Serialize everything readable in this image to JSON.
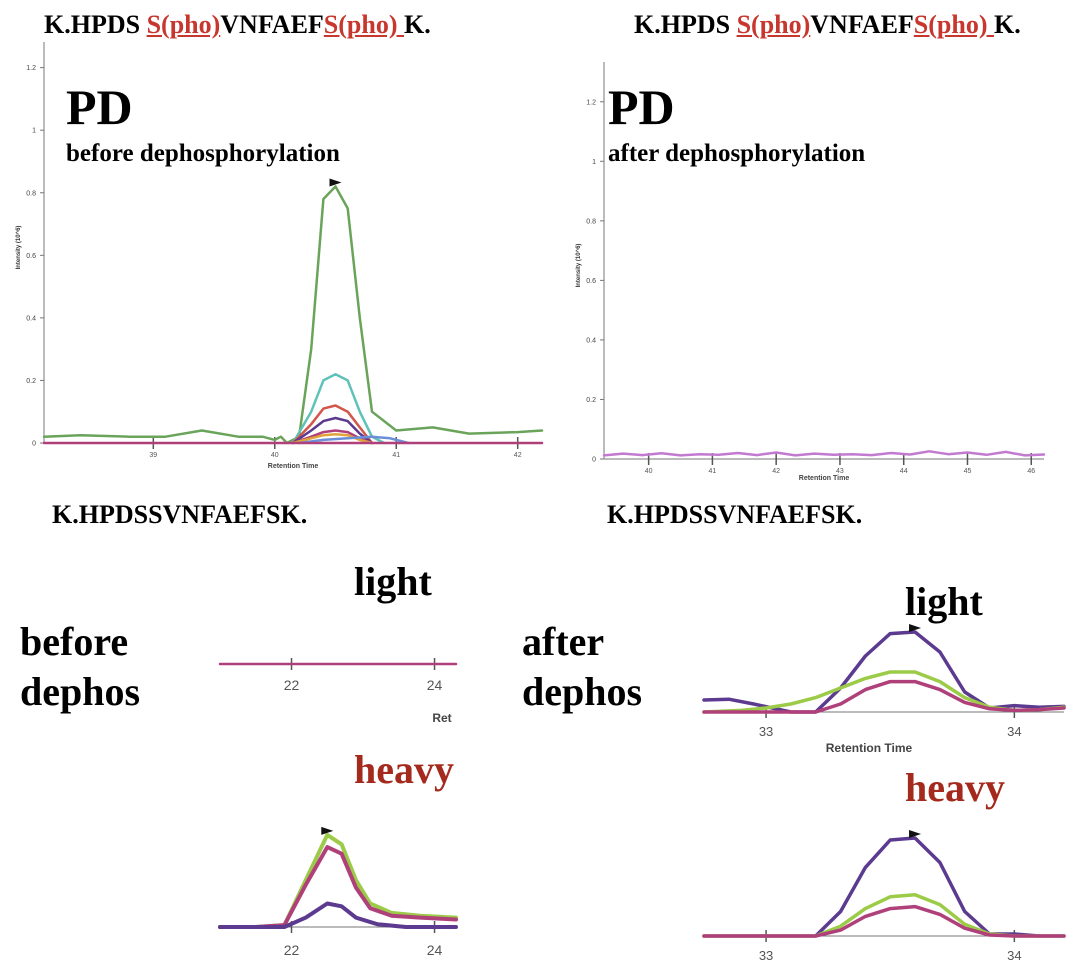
{
  "peptides": {
    "phospho_left": {
      "prefix": "K.HPDS ",
      "mod1": "S(pho)",
      "middle": "VNFAEF",
      "mod2": "S(pho) ",
      "suffix": "K."
    },
    "phospho_right": {
      "prefix": "K.HPDS ",
      "mod1": "S(pho)",
      "middle": "VNFAEF",
      "mod2": "S(pho) ",
      "suffix": "K."
    },
    "unmod_left": "K.HPDSSVNFAEFSK.",
    "unmod_right": "K.HPDSSVNFAEFSK."
  },
  "labels": {
    "pd_left": "PD",
    "pd_left_sub": "before dephosphorylation",
    "pd_right": "PD",
    "pd_right_sub": "after dephosphorylation",
    "before_line1": "before",
    "before_line2": "dephos",
    "after_line1": "after",
    "after_line2": "dephos",
    "light_left": "light",
    "heavy_left": "heavy",
    "light_right": "light",
    "heavy_right": "heavy"
  },
  "colors": {
    "green": "#6aa45a",
    "teal": "#5fc2b8",
    "red": "#d2564a",
    "purple": "#5b3a8f",
    "magenta": "#b0407a",
    "orange": "#e0a43a",
    "blue": "#6a8ed8",
    "lightgreen": "#9ccb48",
    "lavender": "#c27ad0",
    "heavy_text": "#a52a1e",
    "peptide_red": "#c8372d"
  },
  "chart_data": [
    {
      "id": "phospho-before",
      "type": "line",
      "xlabel": "Retention Time",
      "ylabel": "Intensity (10^6)",
      "xlim": [
        38.1,
        42.2
      ],
      "ylim": [
        0,
        1.25
      ],
      "xticks": [
        39,
        40,
        41,
        42
      ],
      "yticks": [
        0,
        0.2,
        0.4,
        0.6,
        0.8,
        1,
        1.2
      ],
      "series": [
        {
          "color": "#6aa45a",
          "x": [
            38.1,
            38.4,
            38.8,
            39.1,
            39.4,
            39.7,
            39.9,
            40.0,
            40.05,
            40.1,
            40.2,
            40.3,
            40.4,
            40.5,
            40.6,
            40.7,
            40.8,
            41.0,
            41.3,
            41.6,
            42.0,
            42.2
          ],
          "y": [
            0.02,
            0.025,
            0.02,
            0.02,
            0.04,
            0.02,
            0.02,
            0.01,
            0.02,
            0.0,
            0.02,
            0.3,
            0.78,
            0.82,
            0.75,
            0.4,
            0.1,
            0.04,
            0.05,
            0.03,
            0.035,
            0.04
          ]
        },
        {
          "color": "#5fc2b8",
          "x": [
            40.15,
            40.3,
            40.4,
            40.5,
            40.6,
            40.7,
            40.8,
            40.9
          ],
          "y": [
            0.0,
            0.1,
            0.2,
            0.22,
            0.2,
            0.1,
            0.02,
            0.0
          ]
        },
        {
          "color": "#d2564a",
          "x": [
            40.15,
            40.3,
            40.4,
            40.5,
            40.6,
            40.7,
            40.8
          ],
          "y": [
            0.0,
            0.06,
            0.11,
            0.12,
            0.1,
            0.05,
            0.0
          ]
        },
        {
          "color": "#5b3a8f",
          "x": [
            40.15,
            40.3,
            40.4,
            40.5,
            40.6,
            40.7,
            40.8
          ],
          "y": [
            0.0,
            0.04,
            0.07,
            0.08,
            0.07,
            0.03,
            0.0
          ]
        },
        {
          "color": "#b0407a",
          "x": [
            40.15,
            40.3,
            40.4,
            40.5,
            40.6,
            40.7,
            40.8
          ],
          "y": [
            0.0,
            0.02,
            0.035,
            0.04,
            0.035,
            0.015,
            0.0
          ]
        },
        {
          "color": "#e0a43a",
          "x": [
            40.15,
            40.3,
            40.4,
            40.5,
            40.6,
            40.7,
            40.8
          ],
          "y": [
            0.0,
            0.015,
            0.025,
            0.028,
            0.025,
            0.01,
            0.0
          ]
        },
        {
          "color": "#6a8ed8",
          "x": [
            40.2,
            40.4,
            40.6,
            40.8,
            40.95,
            41.1
          ],
          "y": [
            0.0,
            0.01,
            0.015,
            0.02,
            0.015,
            0.0
          ]
        },
        {
          "color": "#b0407a",
          "x": [
            38.1,
            40.0,
            40.15,
            40.8,
            41.0,
            42.2
          ],
          "y": [
            0.0,
            0.0,
            0.0,
            0.0,
            0.0,
            0.0
          ]
        }
      ]
    },
    {
      "id": "phospho-after",
      "type": "line",
      "xlabel": "Retention Time",
      "ylabel": "Intensity (10^6)",
      "xlim": [
        39.3,
        46.2
      ],
      "ylim": [
        0,
        1.3
      ],
      "xticks": [
        40,
        41,
        42,
        43,
        44,
        45,
        46
      ],
      "yticks": [
        0,
        0.2,
        0.4,
        0.6,
        0.8,
        1,
        1.2
      ],
      "series": [
        {
          "color": "#c27ad0",
          "x": [
            39.3,
            39.6,
            39.9,
            40.2,
            40.5,
            40.8,
            41.1,
            41.4,
            41.7,
            42.0,
            42.3,
            42.6,
            42.9,
            43.2,
            43.5,
            43.8,
            44.1,
            44.4,
            44.7,
            45.0,
            45.3,
            45.6,
            45.9,
            46.2
          ],
          "y": [
            0.012,
            0.018,
            0.013,
            0.019,
            0.012,
            0.016,
            0.014,
            0.02,
            0.013,
            0.022,
            0.012,
            0.018,
            0.014,
            0.016,
            0.013,
            0.02,
            0.015,
            0.026,
            0.016,
            0.022,
            0.014,
            0.024,
            0.012,
            0.015
          ]
        }
      ]
    },
    {
      "id": "unmod-before-light",
      "type": "line",
      "xlabel": "Ret",
      "xlim": [
        21.0,
        24.3
      ],
      "xticks": [
        22,
        24
      ],
      "series": [
        {
          "color": "#b0407a",
          "x": [
            21.0,
            24.3
          ],
          "y": [
            0.0,
            0.0
          ]
        }
      ]
    },
    {
      "id": "unmod-before-heavy",
      "type": "line",
      "xlabel": "",
      "xlim": [
        21.0,
        24.3
      ],
      "xticks": [
        22,
        24
      ],
      "series": [
        {
          "color": "#9ccb48",
          "x": [
            21.0,
            21.5,
            21.9,
            22.2,
            22.5,
            22.7,
            22.9,
            23.1,
            23.4,
            23.8,
            24.3
          ],
          "y": [
            0.0,
            0.0,
            0.02,
            0.5,
            0.98,
            0.88,
            0.5,
            0.25,
            0.15,
            0.12,
            0.1
          ]
        },
        {
          "color": "#b0407a",
          "x": [
            21.0,
            21.5,
            21.9,
            22.2,
            22.5,
            22.7,
            22.9,
            23.1,
            23.4,
            23.8,
            24.3
          ],
          "y": [
            0.0,
            0.0,
            0.02,
            0.45,
            0.85,
            0.78,
            0.42,
            0.2,
            0.12,
            0.1,
            0.08
          ]
        },
        {
          "color": "#5b3a8f",
          "x": [
            21.0,
            21.6,
            21.9,
            22.2,
            22.5,
            22.7,
            22.9,
            23.2,
            23.6,
            24.3
          ],
          "y": [
            0.0,
            0.0,
            0.0,
            0.1,
            0.25,
            0.22,
            0.1,
            0.03,
            0.0,
            0.0
          ]
        }
      ]
    },
    {
      "id": "unmod-after-light",
      "type": "line",
      "xlabel": "Retention Time",
      "xlim": [
        32.75,
        34.2
      ],
      "xticks": [
        33,
        34
      ],
      "series": [
        {
          "color": "#5b3a8f",
          "x": [
            32.75,
            32.85,
            32.95,
            33.1,
            33.2,
            33.3,
            33.4,
            33.5,
            33.6,
            33.7,
            33.8,
            33.9,
            34.0,
            34.1,
            34.2
          ],
          "y": [
            0.15,
            0.16,
            0.1,
            0.0,
            0.0,
            0.3,
            0.7,
            0.98,
            1.0,
            0.75,
            0.25,
            0.05,
            0.08,
            0.06,
            0.07
          ]
        },
        {
          "color": "#9ccb48",
          "x": [
            32.75,
            32.9,
            33.0,
            33.1,
            33.2,
            33.3,
            33.4,
            33.5,
            33.6,
            33.7,
            33.8,
            33.9,
            34.0,
            34.1,
            34.2
          ],
          "y": [
            0.0,
            0.02,
            0.05,
            0.1,
            0.18,
            0.3,
            0.42,
            0.5,
            0.5,
            0.38,
            0.18,
            0.06,
            0.02,
            0.03,
            0.06
          ]
        },
        {
          "color": "#b0407a",
          "x": [
            32.75,
            33.1,
            33.2,
            33.3,
            33.4,
            33.5,
            33.6,
            33.7,
            33.8,
            33.9,
            34.0,
            34.1,
            34.2
          ],
          "y": [
            0.0,
            0.0,
            0.0,
            0.1,
            0.28,
            0.38,
            0.38,
            0.28,
            0.12,
            0.04,
            0.02,
            0.03,
            0.05
          ]
        }
      ]
    },
    {
      "id": "unmod-after-heavy",
      "type": "line",
      "xlabel": "",
      "xlim": [
        32.75,
        34.2
      ],
      "xticks": [
        33,
        34
      ],
      "series": [
        {
          "color": "#5b3a8f",
          "x": [
            32.75,
            33.0,
            33.2,
            33.3,
            33.4,
            33.5,
            33.6,
            33.7,
            33.8,
            33.9,
            34.0,
            34.1,
            34.2
          ],
          "y": [
            0.0,
            0.0,
            0.0,
            0.25,
            0.7,
            0.98,
            1.0,
            0.75,
            0.25,
            0.02,
            0.02,
            0.0,
            0.0
          ]
        },
        {
          "color": "#9ccb48",
          "x": [
            32.75,
            33.2,
            33.3,
            33.4,
            33.5,
            33.6,
            33.7,
            33.8,
            33.9,
            34.0,
            34.2
          ],
          "y": [
            0.0,
            0.0,
            0.1,
            0.28,
            0.4,
            0.42,
            0.32,
            0.12,
            0.02,
            0.0,
            0.0
          ]
        },
        {
          "color": "#b0407a",
          "x": [
            32.75,
            33.2,
            33.3,
            33.4,
            33.5,
            33.6,
            33.7,
            33.8,
            33.9,
            34.0,
            34.2
          ],
          "y": [
            0.0,
            0.0,
            0.06,
            0.2,
            0.28,
            0.3,
            0.22,
            0.08,
            0.01,
            0.0,
            0.0
          ]
        }
      ]
    }
  ]
}
